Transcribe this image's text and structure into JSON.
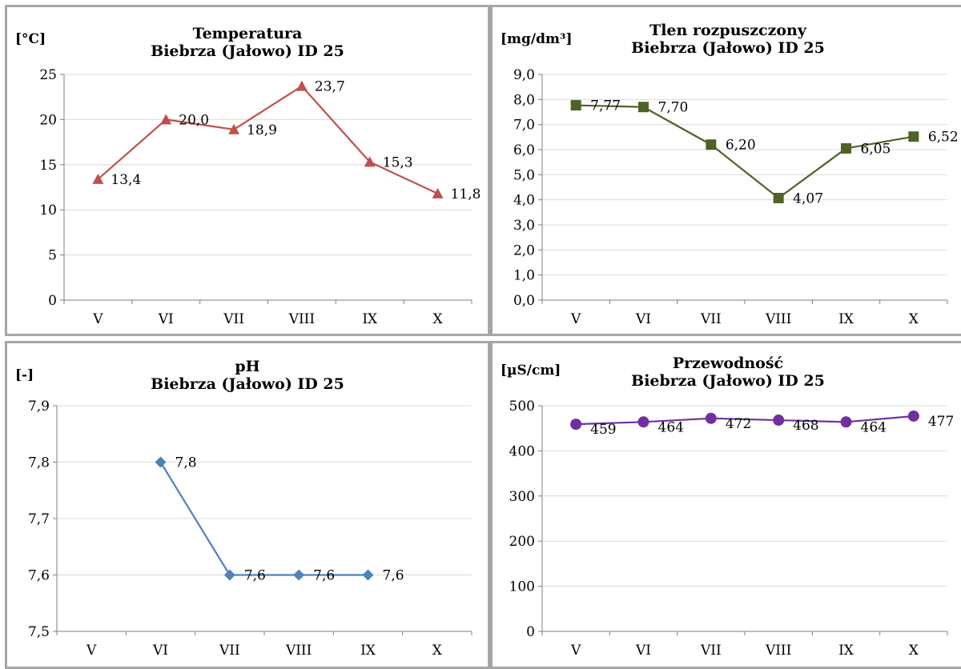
{
  "chart_data": [
    {
      "id": "temp",
      "type": "line",
      "title_line1": "Temperatura",
      "title_line2": "Biebrza (Jałowo) ID 25",
      "ylabel": "[°C]",
      "categories": [
        "V",
        "VI",
        "VII",
        "VIII",
        "IX",
        "X"
      ],
      "values": [
        13.4,
        20.0,
        18.9,
        23.7,
        15.3,
        11.8
      ],
      "labels": [
        "13,4",
        "20,0",
        "18,9",
        "23,7",
        "15,3",
        "11,8"
      ],
      "yticks": [
        "0",
        "5",
        "10",
        "15",
        "20",
        "25"
      ],
      "ylim": [
        0,
        25
      ],
      "ystep": 5,
      "marker": "triangle",
      "color": "#c0504d",
      "grid": true
    },
    {
      "id": "o2",
      "type": "line",
      "title_line1": "Tlen rozpuszczony",
      "title_line2": "Biebrza (Jałowo) ID 25",
      "ylabel": "[mg/dm³]",
      "categories": [
        "V",
        "VI",
        "VII",
        "VIII",
        "IX",
        "X"
      ],
      "values": [
        7.77,
        7.7,
        6.2,
        4.07,
        6.05,
        6.52
      ],
      "labels": [
        "7,77",
        "7,70",
        "6,20",
        "4,07",
        "6,05",
        "6,52"
      ],
      "yticks": [
        "0,0",
        "1,0",
        "2,0",
        "3,0",
        "4,0",
        "5,0",
        "6,0",
        "7,0",
        "8,0",
        "9,0"
      ],
      "ylim": [
        0,
        9
      ],
      "ystep": 1,
      "marker": "square",
      "color": "#4f6228",
      "grid": true
    },
    {
      "id": "ph",
      "type": "line",
      "title_line1": "pH",
      "title_line2": "Biebrza (Jałowo) ID 25",
      "ylabel": "[-]",
      "categories": [
        "V",
        "VI",
        "VII",
        "VIII",
        "IX",
        "X"
      ],
      "values": [
        null,
        7.8,
        7.6,
        7.6,
        7.6,
        null
      ],
      "labels": [
        null,
        "7,8",
        "7,6",
        "7,6",
        "7,6",
        null
      ],
      "yticks": [
        "7,5",
        "7,6",
        "7,7",
        "7,8",
        "7,9"
      ],
      "ylim": [
        7.5,
        7.9
      ],
      "ystep": 0.1,
      "marker": "diamond",
      "color": "#4f81bd",
      "grid": true
    },
    {
      "id": "cond",
      "type": "line",
      "title_line1": "Przewodność",
      "title_line2": "Biebrza (Jałowo)  ID 25",
      "ylabel": "[µS/cm]",
      "categories": [
        "V",
        "VI",
        "VII",
        "VIII",
        "IX",
        "X"
      ],
      "values": [
        459,
        464,
        472,
        468,
        464,
        477
      ],
      "labels": [
        "459",
        "464",
        "472",
        "468",
        "464",
        "477"
      ],
      "yticks": [
        "0",
        "100",
        "200",
        "300",
        "400",
        "500"
      ],
      "ylim": [
        0,
        500
      ],
      "ystep": 100,
      "marker": "circle",
      "color": "#7030a0",
      "grid": true
    }
  ]
}
